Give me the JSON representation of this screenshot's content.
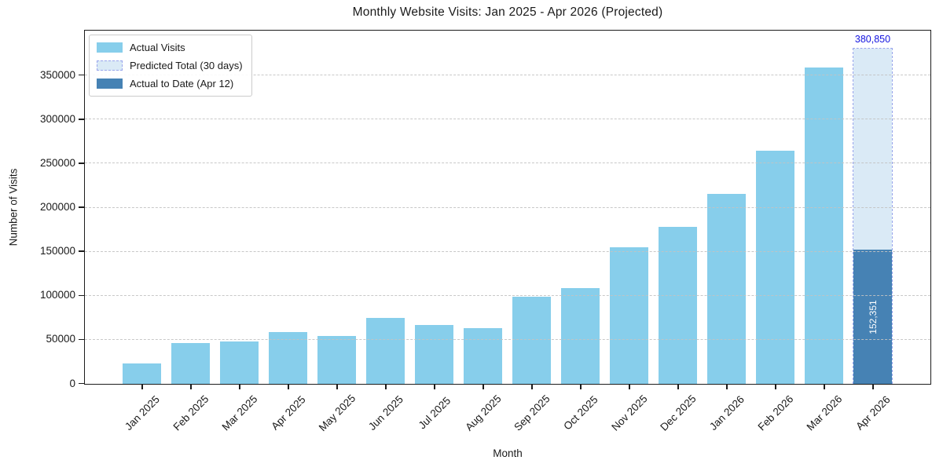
{
  "title": "Monthly Website Visits: Jan 2025 - Apr 2026 (Projected)",
  "chart_data": {
    "type": "bar",
    "title": "Monthly Website Visits: Jan 2025 - Apr 2026 (Projected)",
    "xlabel": "Month",
    "ylabel": "Number of Visits",
    "ylim": [
      0,
      400000
    ],
    "yticks": [
      0,
      50000,
      100000,
      150000,
      200000,
      250000,
      300000,
      350000
    ],
    "grid": true,
    "legend_position": "upper left",
    "categories": [
      "Jan 2025",
      "Feb 2025",
      "Mar 2025",
      "Apr 2025",
      "May 2025",
      "Jun 2025",
      "Jul 2025",
      "Aug 2025",
      "Sep 2025",
      "Oct 2025",
      "Nov 2025",
      "Dec 2025",
      "Jan 2026",
      "Feb 2026",
      "Mar 2026",
      "Apr 2026"
    ],
    "series": [
      {
        "name": "Actual Visits",
        "color": "#87CEEB",
        "values": [
          23500,
          46000,
          48000,
          59000,
          54000,
          74500,
          66500,
          63500,
          98500,
          109000,
          155000,
          178000,
          215500,
          265000,
          359000,
          null
        ]
      },
      {
        "name": "Predicted Total (30 days)",
        "color": "#daeaf6",
        "border_color": "#99a5ec",
        "border_style": "dashed",
        "values": [
          null,
          null,
          null,
          null,
          null,
          null,
          null,
          null,
          null,
          null,
          null,
          null,
          null,
          null,
          null,
          380850
        ]
      },
      {
        "name": "Actual to Date (Apr 12)",
        "color": "#4682B4",
        "values": [
          null,
          null,
          null,
          null,
          null,
          null,
          null,
          null,
          null,
          null,
          null,
          null,
          null,
          null,
          null,
          152351
        ]
      }
    ],
    "annotations": [
      {
        "text": "380,850",
        "category": "Apr 2026",
        "value": 380850,
        "color": "#1414e0",
        "position": "above-predicted-bar"
      },
      {
        "text": "152,351",
        "category": "Apr 2026",
        "value": 152351,
        "color": "#ffffff",
        "position": "centered-inside-actual-to-date-bar",
        "rotation": 90
      }
    ]
  }
}
